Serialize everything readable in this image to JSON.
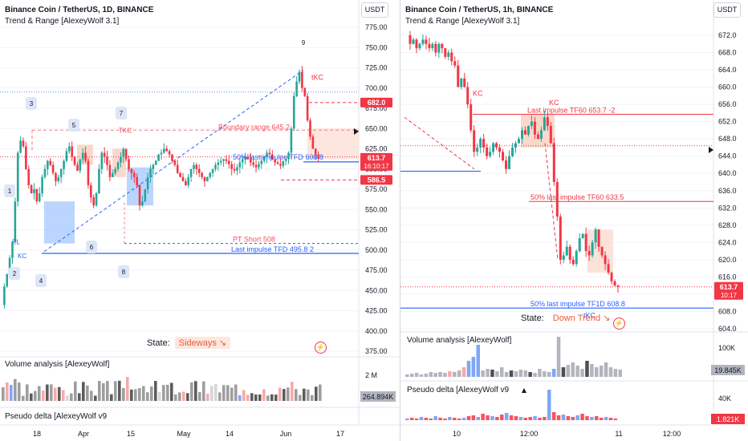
{
  "left": {
    "title": "Binance Coin / TetherUS, 1D, BINANCE",
    "indicator": "Trend & Range [AlexeyWolf 3.1]",
    "currency": "USDT",
    "price_ticks": [
      "775.00",
      "750.00",
      "725.00",
      "700.00",
      "675.00",
      "650.00",
      "625.00",
      "600.00",
      "575.00",
      "550.00",
      "525.00",
      "500.00",
      "475.00",
      "450.00",
      "425.00",
      "400.00",
      "375.00"
    ],
    "price_badges": [
      {
        "value": "682.0",
        "color": "#f23645"
      },
      {
        "value": "613.7",
        "color": "#f23645",
        "sub": "16:10:17"
      },
      {
        "value": "586.5",
        "color": "#f23645"
      }
    ],
    "annotations": {
      "boundary": "Boundary range 645.2",
      "fifty": "50% last impulse TFD 608.8",
      "pt_short": "PT Short 508",
      "last_impulse": "Last impulse TFD 495.8 2",
      "tkc_top": "tKC",
      "tkc_mid": "TKC",
      "kc1": "KC",
      "kc2": "KC",
      "pl": "PL"
    },
    "wave_labels": [
      "1",
      "2",
      "3",
      "4",
      "5",
      "6",
      "7",
      "8",
      "9"
    ],
    "state_label": "State:",
    "state_value": "Sideways ↘",
    "volume_title": "Volume analysis [AlexeyWolf]",
    "volume_tick": "2 M",
    "volume_value": "264.894K",
    "delta_title": "Pseudo delta [AlexeyWolf v9",
    "time_labels": [
      "18",
      "Apr",
      "15",
      "May",
      "14",
      "Jun",
      "17"
    ]
  },
  "right": {
    "title": "Binance Coin / TetherUS, 1h, BINANCE",
    "indicator": "Trend & Range [AlexeyWolf 3.1]",
    "currency": "USDT",
    "price_ticks": [
      "672.0",
      "668.0",
      "664.0",
      "660.0",
      "656.0",
      "652.0",
      "648.0",
      "644.0",
      "640.0",
      "636.0",
      "632.0",
      "628.0",
      "624.0",
      "620.0",
      "616.0",
      "612.0",
      "608.0",
      "604.0"
    ],
    "price_badge": {
      "value": "613.7",
      "sub": "10:17",
      "color": "#f23645"
    },
    "annotations": {
      "last_impulse": "Last impulse TF60 653.7 -2",
      "fifty_60": "50% last impulse TF60 633.5",
      "fifty_d": "50% last impulse TF1D 608.8",
      "kc_left": "KC",
      "kc_top": "KC",
      "tkc": "tKC"
    },
    "state_label": "State:",
    "state_value": "Down Trend ↘",
    "volume_title": "Volume analysis [AlexeyWolf]",
    "volume_tick": "100K",
    "volume_value": "19.845K",
    "delta_title": "Pseudo delta [AlexeyWolf v9",
    "delta_tick": "40K",
    "delta_value": "1.821K",
    "time_labels": [
      "10",
      "12:00",
      "11",
      "12:00"
    ]
  },
  "colors": {
    "up": "#26a69a",
    "down": "#f23645",
    "blue": "#2962ff",
    "grid": "#f0f3fa"
  }
}
